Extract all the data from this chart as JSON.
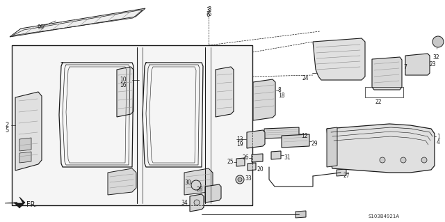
{
  "bg": "#ffffff",
  "line_color": "#1a1a1a",
  "diagram_code": "S103B4921A",
  "fig_w": 6.4,
  "fig_h": 3.19,
  "dpi": 100
}
